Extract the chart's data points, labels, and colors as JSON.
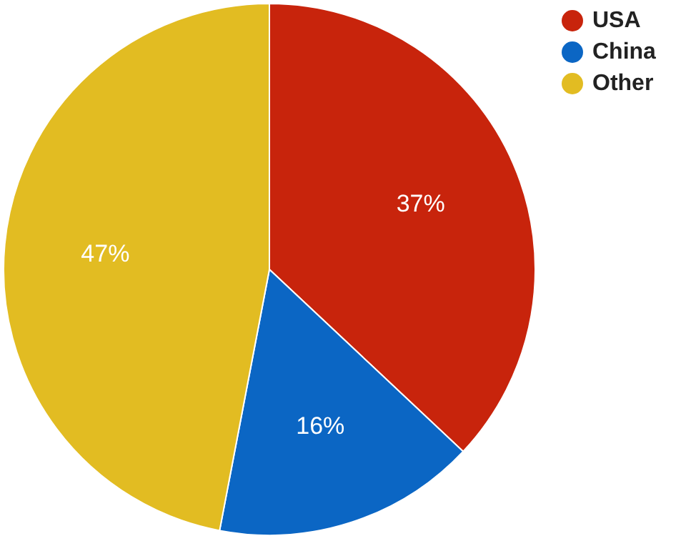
{
  "chart_data": {
    "type": "pie",
    "categories": [
      "USA",
      "China",
      "Other"
    ],
    "values": [
      37,
      16,
      47
    ],
    "value_labels": [
      "37%",
      "16%",
      "47%"
    ],
    "colors": [
      "#c8240c",
      "#0b66c4",
      "#e2bc22"
    ],
    "legend": "top right"
  }
}
